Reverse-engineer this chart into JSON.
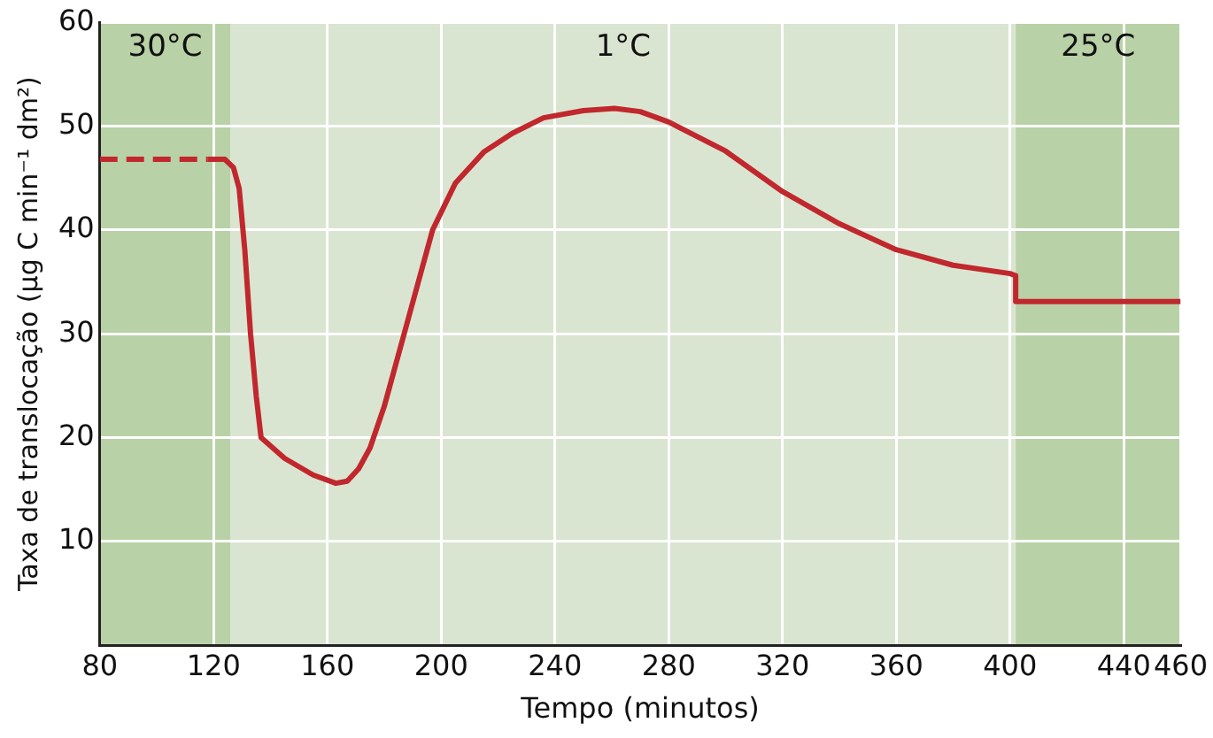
{
  "chart_data": {
    "type": "line",
    "xlabel": "Tempo (minutos)",
    "ylabel": "Taxa de translocação (µg C min⁻¹ dm²)",
    "xlim": [
      80,
      460
    ],
    "xticks": [
      80,
      120,
      160,
      200,
      240,
      280,
      320,
      360,
      400,
      440,
      460
    ],
    "ylim": [
      0,
      60
    ],
    "yticks": [
      10,
      20,
      30,
      40,
      50,
      60
    ],
    "grid": true,
    "legend": false,
    "marker": "none",
    "bands": [
      {
        "axis": "x",
        "from": 80,
        "to": 126,
        "label": "30°C",
        "color": "#b8d1a6"
      },
      {
        "axis": "x",
        "from": 126,
        "to": 402,
        "label": "1°C",
        "color": "#dae5d1"
      },
      {
        "axis": "x",
        "from": 402,
        "to": 460,
        "label": "25°C",
        "color": "#b8d1a6"
      }
    ],
    "series": [
      {
        "color": "#c0282d",
        "line_style": "dashed",
        "x": [
          80,
          118
        ],
        "values": [
          46.8,
          46.8
        ]
      },
      {
        "color": "#c0282d",
        "line_style": "solid",
        "x": [
          118,
          124,
          127,
          129,
          131,
          133,
          135,
          136.7,
          145,
          155,
          163,
          167,
          171,
          175,
          180,
          187,
          192,
          197,
          205,
          215,
          225,
          236,
          250,
          261,
          270,
          280,
          300,
          320,
          340,
          360,
          380,
          400,
          402,
          402,
          460
        ],
        "values": [
          46.8,
          46.8,
          46,
          44,
          38,
          30,
          24,
          20,
          18,
          16.4,
          15.6,
          15.8,
          17,
          19,
          23,
          30,
          35,
          40,
          44.5,
          47.5,
          49.3,
          50.8,
          51.5,
          51.7,
          51.4,
          50.4,
          47.6,
          43.7,
          40.6,
          38.1,
          36.6,
          35.8,
          35.6,
          33.1,
          33.1
        ]
      }
    ]
  }
}
